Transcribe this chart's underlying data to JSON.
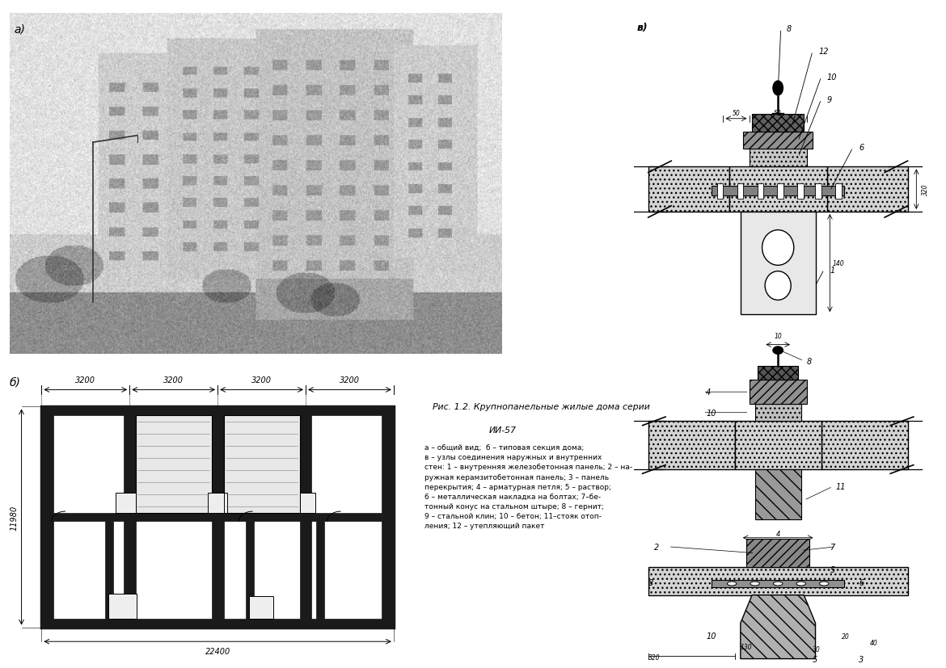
{
  "white": "#ffffff",
  "black": "#000000",
  "light_gray": "#d0d0d0",
  "mid_gray": "#a0a0a0",
  "dark_gray": "#606060",
  "very_dark": "#303030",
  "photo_bg": "#c8c8c8",
  "wall_black": "#1a1a1a",
  "hatch_gray": "#888888",
  "label_a": "а)",
  "label_b": "б)",
  "label_v": "в)",
  "dim_3200_1": "3200",
  "dim_3200_2": "3200",
  "dim_3200_3": "3200",
  "dim_3200_4": "3200",
  "dim_22400": "22400",
  "dim_11980": "11980",
  "title_line1": "Рис. 1.2. Крупнопанельные жилые дома серии",
  "title_line2": "ИИ-57",
  "caption_text": "а – общий вид;  б – типовая секция дома;\nв – узлы соединения наружных и внутренних\nстен: 1 – внутренняя железобетонная панель; 2 – на-\nружная керамзитобетонная панель; 3 – панель\nперекрытия; 4 – арматурная петля; 5 – раствор;\n6 – металлическая накладка на болтах; 7–бе-\nтонный конус на стальном штыре; 8 – гернит;\n9 – стальной клин; 10 – бетон; 11–стояк отоп-\nления; 12 – утепляющий пакет"
}
